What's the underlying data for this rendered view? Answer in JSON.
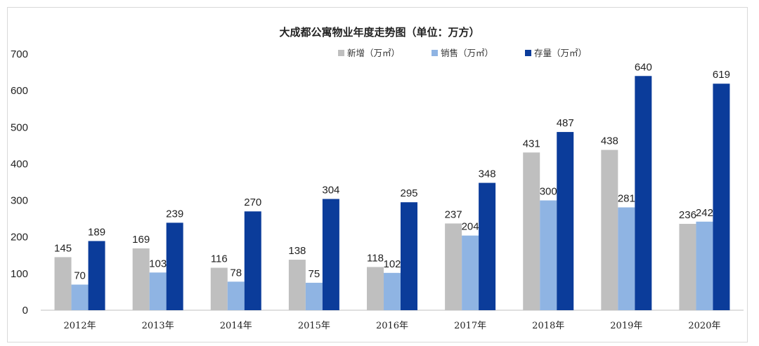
{
  "chart_data": {
    "type": "bar",
    "title": "大成都公寓物业年度走势图（单位：万方）",
    "categories": [
      "2012年",
      "2013年",
      "2014年",
      "2015年",
      "2016年",
      "2017年",
      "2018年",
      "2019年",
      "2020年"
    ],
    "series": [
      {
        "name": "新增（万㎡）",
        "color": "#bfbfbf",
        "values": [
          145,
          169,
          116,
          138,
          118,
          237,
          431,
          438,
          236
        ]
      },
      {
        "name": "销售（万㎡）",
        "color": "#8fb4e3",
        "values": [
          70,
          103,
          78,
          75,
          102,
          204,
          300,
          281,
          242
        ]
      },
      {
        "name": "存量（万㎡）",
        "color": "#0b3c9a",
        "values": [
          189,
          239,
          270,
          304,
          295,
          348,
          487,
          640,
          619
        ]
      }
    ],
    "ylim": [
      0,
      700
    ],
    "yticks": [
      0,
      100,
      200,
      300,
      400,
      500,
      600,
      700
    ],
    "grid": false,
    "legend": "top-center",
    "data_labels": true
  }
}
